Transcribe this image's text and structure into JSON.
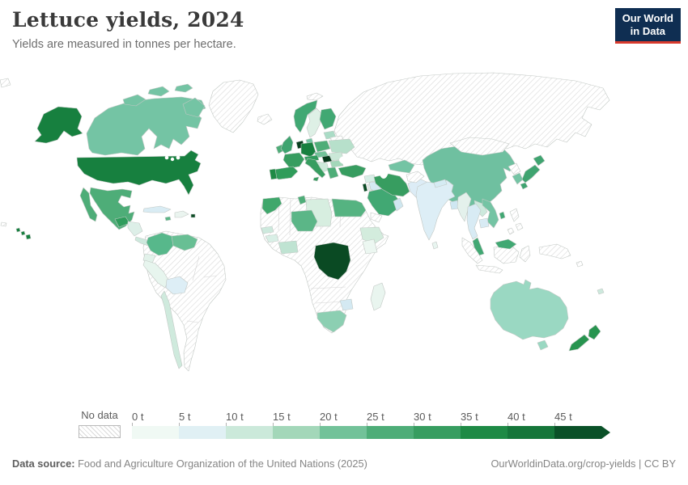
{
  "header": {
    "title": "Lettuce yields, 2024",
    "subtitle": "Yields are measured in tonnes per hectare."
  },
  "logo": {
    "line1": "Our World",
    "line2": "in Data",
    "bg": "#0f2e52",
    "accent": "#d93a2d"
  },
  "legend": {
    "no_data_label": "No data",
    "bins": [
      {
        "label": "0 t",
        "color": "#f0f9f4"
      },
      {
        "label": "5 t",
        "color": "#e0f0f4"
      },
      {
        "label": "10 t",
        "color": "#cbe9da"
      },
      {
        "label": "15 t",
        "color": "#a3d7b9"
      },
      {
        "label": "20 t",
        "color": "#72c299"
      },
      {
        "label": "25 t",
        "color": "#4ead78"
      },
      {
        "label": "30 t",
        "color": "#379d60"
      },
      {
        "label": "35 t",
        "color": "#1e8a45"
      },
      {
        "label": "40 t",
        "color": "#15763a"
      },
      {
        "label": "45 t",
        "color": "#0a5128"
      }
    ]
  },
  "footer": {
    "source_label": "Data source:",
    "source_text": " Food and Agriculture Organization of the United Nations (2025)",
    "link_text": "OurWorldinData.org/crop-yields | CC BY"
  },
  "map": {
    "no_data_pattern": {
      "bg": "#ffffff",
      "line": "#d9d9d9"
    },
    "region_fills": {
      "chukotka": "nodata",
      "midway": "nodata",
      "greenland": "nodata",
      "iceland": "nodata",
      "svalbard": "nodata",
      "russia": "nodata",
      "mongolia": "nodata",
      "north-korea": "nodata",
      "philippines": "nodata",
      "indonesia": "nodata",
      "new-guinea": "nodata",
      "solomon": "nodata",
      "south-america-nodata": "nodata",
      "africa-nodata": "nodata",
      "belarus": "nodata",
      "afghanistan": "nodata",
      "yemen": "nodata",
      "alaska": "#17803f",
      "usa": "#17803f",
      "canada": "#74c4a4",
      "arctic-islands": "#74c4a4",
      "mexico": "#4ead78",
      "guatemala": "#2f9c5c",
      "honduras-nicaragua": "#ddefe8",
      "costa-rica-panama": "#cde9dd",
      "cuba": "#d9ecf4",
      "hispaniola": "#eaf4ef",
      "puerto-rico": "#0a4a23",
      "jamaica": "#5bb687",
      "colombia": "#57b88b",
      "venezuela": "#68bf94",
      "ecuador": "#e2f2ea",
      "peru": "#e7f5ee",
      "bolivia": "#ddeef6",
      "chile": "#cfeadd",
      "norway": "#41a873",
      "sweden": "#def0e6",
      "finland": "#41a873",
      "denmark": "#74c4a4",
      "baltics": "#aadcc6",
      "uk": "#3fa470",
      "ireland": "#4ead78",
      "benelux": "#083f1e",
      "germany": "#17803f",
      "poland": "#4ead78",
      "czech-slovakia": "#72c299",
      "france": "#379d60",
      "switzerland-austria": "#2f9c5c",
      "hungary": "#06391b",
      "ukraine": "#b7e0cb",
      "romania": "#cbe8d8",
      "balkans": "#cde9da",
      "bulgaria": "#a3d7b9",
      "italy": "#379d60",
      "greece": "#4ead78",
      "spain": "#2f9c5a",
      "portugal": "#1e8a45",
      "morocco": "#3fa76b",
      "tunisia": "#4ead78",
      "libya": "#d7eee0",
      "egypt": "#55b381",
      "niger": "#5bb687",
      "senegal": "#cde9dd",
      "guinea": "#d9efe6",
      "ivory-ghana": "#bfe3d2",
      "ethiopia": "#d3ecdd",
      "kenya": "#ecf7f1",
      "drc": "#0a4a23",
      "zimbabwe": "#d4e9f2",
      "south-africa": "#8ccfb2",
      "madagascar": "#e9f5ef",
      "turkey": "#379d60",
      "syria": "#d7eee6",
      "israel": "#0a4a23",
      "jordan": "#e4f1ec",
      "iraq": "#d6eaf3",
      "saudi-arabia": "#41a873",
      "oman": "#cfe7f0",
      "iran": "#379d60",
      "central-asia": "#74c4a4",
      "pakistan": "#dcecf6",
      "india": "#ddeef6",
      "nepal": "#d5ebf3",
      "bangladesh": "#cfe7f2",
      "sri-lanka": "#e8f5f0",
      "myanmar": "#e4f1ec",
      "thailand": "#d8ebf4",
      "laos": "#cde9dd",
      "vietnam": "#74c4a4",
      "cambodia": "#d8ebf4",
      "malaysia": "#41a873",
      "borneo-malaysia": "#41a873",
      "china": "#6fc0a0",
      "south-korea": "#74c4a4",
      "japan": "#3fa470",
      "taiwan": "#41a873",
      "australia": "#9ad8c2",
      "tasmania": "#9ad8c2",
      "new-zealand": "#27944f",
      "fiji": "#cde9dd",
      "hawaii": "#17803f"
    }
  },
  "chart_data": {
    "type": "choropleth",
    "title": "Lettuce yields, 2024",
    "unit": "tonnes per hectare",
    "year": 2024,
    "legend_bins": [
      "0 t",
      "5 t",
      "10 t",
      "15 t",
      "20 t",
      "25 t",
      "30 t",
      "35 t",
      "40 t",
      "45 t"
    ],
    "countries_by_bin": {
      "45+ t": [
        "Hungary",
        "Belgium",
        "Netherlands",
        "Democratic Republic of Congo",
        "Puerto Rico",
        "Israel"
      ],
      "35-45 t": [
        "United States",
        "Germany",
        "Portugal",
        "Austria",
        "Guatemala",
        "Morocco",
        "New Zealand"
      ],
      "30-35 t": [
        "France",
        "Spain",
        "Italy",
        "Switzerland",
        "Iran",
        "Turkey",
        "Japan"
      ],
      "25-30 t": [
        "Mexico",
        "United Kingdom",
        "Ireland",
        "Poland",
        "Greece",
        "Saudi Arabia",
        "Norway",
        "Finland",
        "Tunisia",
        "Malaysia",
        "Egypt",
        "Niger",
        "Taiwan",
        "Jamaica"
      ],
      "20-25 t": [
        "Canada",
        "China",
        "Colombia",
        "Venezuela",
        "South Korea",
        "Vietnam",
        "Uzbekistan",
        "Turkmenistan",
        "Czechia",
        "Slovakia",
        "Denmark"
      ],
      "15-20 t": [
        "Australia",
        "South Africa",
        "Bulgaria",
        "Estonia",
        "Latvia",
        "Lithuania"
      ],
      "10-15 t": [
        "Chile",
        "Ukraine",
        "Romania",
        "Croatia",
        "Serbia",
        "Ethiopia",
        "Libya",
        "Ghana",
        "Cote d'Ivoire",
        "Laos",
        "Senegal",
        "Fiji"
      ],
      "5-10 t": [
        "India",
        "Pakistan",
        "Thailand",
        "Bolivia",
        "Zimbabwe",
        "Iraq",
        "Cuba",
        "Oman",
        "Bangladesh",
        "Nepal",
        "Cambodia"
      ],
      "0-5 t": [
        "Peru",
        "Ecuador",
        "Kenya",
        "Madagascar",
        "Sri Lanka",
        "Dominican Republic",
        "Haiti",
        "Myanmar",
        "Jordan",
        "Syria",
        "Sweden"
      ],
      "no_data": [
        "Russia",
        "Brazil",
        "Argentina",
        "Greenland",
        "Iceland",
        "Kazakhstan",
        "Mongolia",
        "North Korea",
        "Indonesia",
        "Papua New Guinea",
        "Philippines",
        "Afghanistan",
        "Yemen",
        "Belarus",
        "most of northern and central Africa"
      ]
    }
  }
}
